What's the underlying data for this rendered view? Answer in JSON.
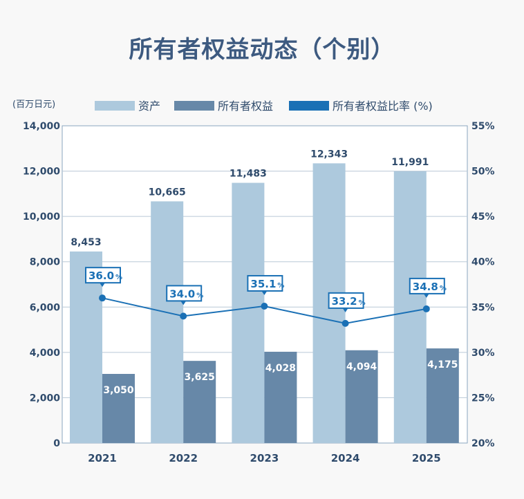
{
  "chart_data": {
    "type": "bar",
    "title": "所有者权益动态（个别）",
    "unit_label": "(百万日元)",
    "categories": [
      "2021",
      "2022",
      "2023",
      "2024",
      "2025"
    ],
    "series": [
      {
        "name": "资产",
        "type": "bar",
        "axis": "left",
        "values": [
          8453,
          10665,
          11483,
          12343,
          11991
        ],
        "labels": [
          "8,453",
          "10,665",
          "11,483",
          "12,343",
          "11,991"
        ],
        "color": "#adc9dd"
      },
      {
        "name": "所有者权益",
        "type": "bar",
        "axis": "left",
        "values": [
          3050,
          3625,
          4028,
          4094,
          4175
        ],
        "labels": [
          "3,050",
          "3,625",
          "4,028",
          "4,094",
          "4,175"
        ],
        "color": "#6788a8"
      },
      {
        "name": "所有者权益比率 (%)",
        "type": "line",
        "axis": "right",
        "values": [
          36.0,
          34.0,
          35.1,
          33.2,
          34.8
        ],
        "labels": [
          "36.0",
          "34.0",
          "35.1",
          "33.2",
          "34.8"
        ],
        "label_suffix": "%",
        "color": "#1a70b5"
      }
    ],
    "ylim": [
      0,
      14000
    ],
    "yticks": [
      "0",
      "2,000",
      "4,000",
      "6,000",
      "8,000",
      "10,000",
      "12,000",
      "14,000"
    ],
    "y2lim": [
      20,
      55
    ],
    "y2ticks": [
      "20%",
      "25%",
      "30%",
      "35%",
      "40%",
      "45%",
      "50%",
      "55%"
    ],
    "grid": true,
    "legend": "top"
  }
}
